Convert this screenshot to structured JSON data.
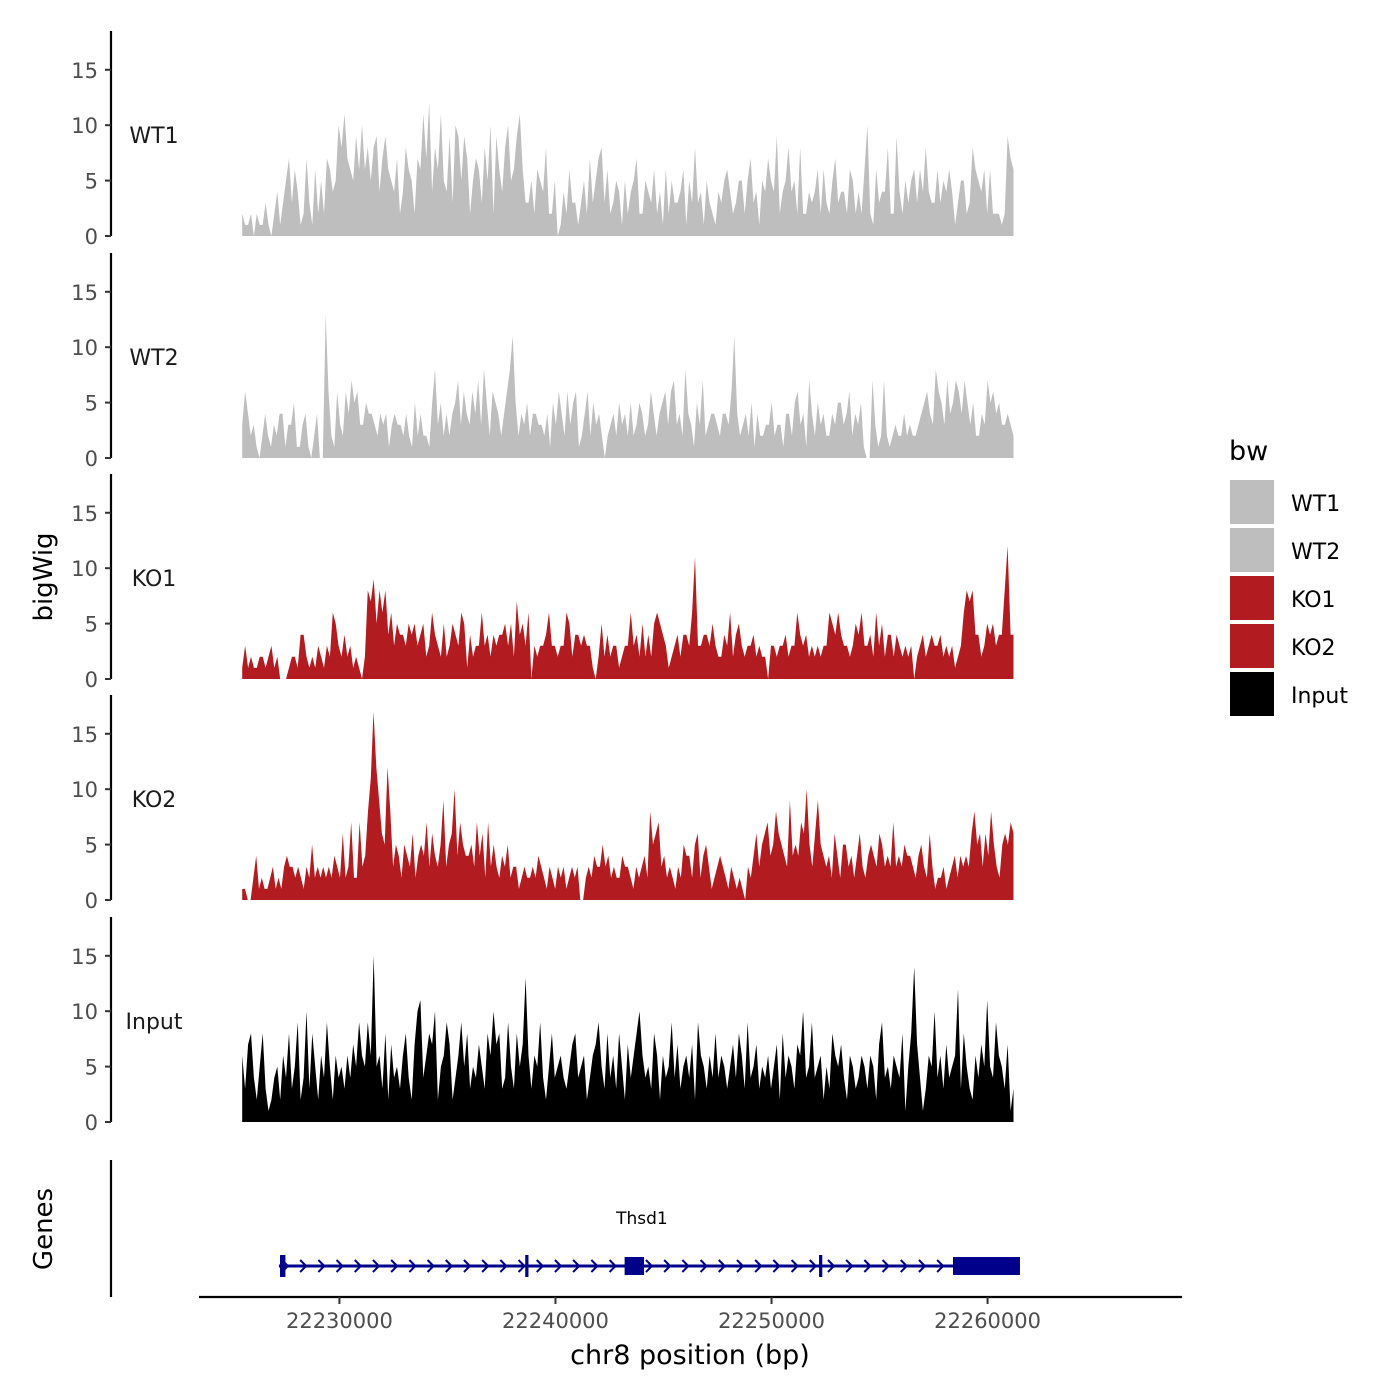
{
  "chart_data": {
    "type": "area",
    "ylabel": "bigWig",
    "xlabel": "chr8 position (bp)",
    "y_ticks": [
      "0",
      "5",
      "10",
      "15"
    ],
    "ylim": [
      0,
      18.5
    ],
    "xlim": [
      22223500,
      22269000
    ],
    "data_x_range": [
      22225500,
      22261200
    ],
    "x_ticks": [
      {
        "value": 22230000,
        "label": "22230000"
      },
      {
        "value": 22240000,
        "label": "22240000"
      },
      {
        "value": 22250000,
        "label": "22250000"
      },
      {
        "value": 22260000,
        "label": "22260000"
      }
    ],
    "tracks": [
      {
        "name": "WT1",
        "color": "#BEBEBE",
        "values": [
          2,
          1,
          1,
          2,
          0,
          2,
          1,
          1,
          3,
          1,
          0,
          2,
          4,
          1,
          3,
          5,
          7,
          3,
          6,
          4,
          1,
          2,
          7,
          3,
          1,
          6,
          2,
          5,
          2,
          7,
          6,
          4,
          5,
          10,
          8,
          11,
          7,
          6,
          5,
          9,
          6,
          10,
          6,
          8,
          5,
          8,
          9,
          4,
          7,
          9,
          6,
          5,
          4,
          7,
          2,
          4,
          8,
          6,
          5,
          2,
          7,
          6,
          11,
          7,
          12,
          4,
          8,
          6,
          11,
          5,
          4,
          9,
          3,
          10,
          9,
          5,
          9,
          7,
          2,
          5,
          7,
          6,
          3,
          8,
          5,
          10,
          2,
          9,
          6,
          4,
          8,
          10,
          5,
          6,
          9,
          11,
          6,
          3,
          3,
          5,
          2,
          6,
          5,
          4,
          8,
          2,
          2,
          5,
          0,
          1,
          4,
          2,
          6,
          3,
          3,
          1,
          3,
          5,
          2,
          7,
          3,
          5,
          7,
          8,
          3,
          6,
          2,
          3,
          5,
          4,
          1,
          5,
          2,
          4,
          5,
          7,
          2,
          2,
          5,
          4,
          3,
          6,
          2,
          4,
          1,
          6,
          2,
          5,
          3,
          3,
          4,
          6,
          1,
          5,
          3,
          8,
          3,
          4,
          1,
          5,
          3,
          2,
          1,
          4,
          3,
          5,
          6,
          4,
          2,
          3,
          5,
          5,
          2,
          5,
          7,
          3,
          4,
          1,
          5,
          4,
          7,
          5,
          4,
          9,
          2,
          4,
          5,
          8,
          4,
          5,
          2,
          8,
          2,
          2,
          4,
          3,
          4,
          6,
          2,
          6,
          3,
          2,
          5,
          7,
          3,
          4,
          4,
          2,
          6,
          5,
          2,
          4,
          2,
          6,
          10,
          2,
          1,
          6,
          3,
          4,
          4,
          8,
          2,
          2,
          9,
          4,
          2,
          5,
          3,
          5,
          6,
          3,
          6,
          4,
          8,
          4,
          3,
          3,
          6,
          3,
          5,
          4,
          6,
          4,
          1,
          3,
          5,
          5,
          2,
          3,
          8,
          6,
          5,
          4,
          6,
          2,
          6,
          2,
          2,
          2,
          1,
          2,
          9,
          7,
          6
        ]
      },
      {
        "name": "WT2",
        "color": "#BEBEBE",
        "values": [
          3,
          6,
          4,
          2,
          3,
          1,
          0,
          2,
          4,
          2,
          1,
          3,
          2,
          4,
          4,
          1,
          3,
          3,
          5,
          1,
          1,
          3,
          4,
          1,
          0,
          2,
          4,
          0,
          0,
          13,
          6,
          2,
          1,
          6,
          3,
          2,
          6,
          4,
          7,
          5,
          6,
          3,
          3,
          5,
          4,
          4,
          3,
          2,
          4,
          3,
          4,
          1,
          3,
          4,
          3,
          3,
          2,
          4,
          2,
          1,
          5,
          2,
          4,
          2,
          2,
          1,
          5,
          8,
          3,
          5,
          2,
          4,
          2,
          4,
          5,
          7,
          3,
          6,
          4,
          3,
          6,
          4,
          7,
          3,
          8,
          5,
          2,
          6,
          5,
          4,
          2,
          4,
          6,
          8,
          11,
          5,
          2,
          4,
          3,
          5,
          2,
          4,
          4,
          3,
          3,
          2,
          4,
          1,
          5,
          3,
          6,
          4,
          2,
          6,
          3,
          5,
          6,
          1,
          2,
          4,
          6,
          2,
          5,
          3,
          4,
          2,
          0,
          2,
          3,
          4,
          2,
          5,
          3,
          4,
          2,
          5,
          2,
          3,
          5,
          4,
          2,
          3,
          6,
          4,
          2,
          4,
          5,
          6,
          3,
          6,
          7,
          3,
          4,
          2,
          8,
          4,
          3,
          1,
          5,
          3,
          7,
          2,
          3,
          4,
          4,
          3,
          2,
          4,
          4,
          3,
          6,
          11,
          4,
          2,
          3,
          4,
          2,
          5,
          1,
          4,
          2,
          2,
          3,
          3,
          5,
          2,
          3,
          3,
          1,
          4,
          4,
          2,
          5,
          6,
          3,
          4,
          1,
          7,
          4,
          2,
          5,
          3,
          4,
          2,
          2,
          4,
          3,
          5,
          5,
          3,
          4,
          6,
          2,
          4,
          3,
          5,
          1,
          0,
          0,
          7,
          3,
          1,
          2,
          7,
          2,
          1,
          2,
          3,
          2,
          2,
          4,
          2,
          3,
          2,
          2,
          3,
          4,
          5,
          6,
          4,
          3,
          8,
          6,
          5,
          3,
          7,
          4,
          5,
          7,
          6,
          4,
          7,
          5,
          3,
          5,
          2,
          2,
          4,
          3,
          7,
          5,
          6,
          4,
          5,
          3,
          3,
          4,
          3,
          2
        ]
      },
      {
        "name": "KO1",
        "color": "#B21B1F",
        "values": [
          1,
          3,
          1,
          2,
          1,
          1,
          2,
          2,
          1,
          2,
          3,
          1,
          2,
          0,
          0,
          0,
          1,
          2,
          2,
          1,
          4,
          4,
          2,
          1,
          2,
          1,
          3,
          2,
          1,
          3,
          2,
          6,
          5,
          3,
          2,
          4,
          2,
          3,
          1,
          2,
          1,
          0,
          2,
          8,
          7,
          9,
          5,
          8,
          6,
          8,
          4,
          6,
          3,
          5,
          4,
          4,
          3,
          5,
          4,
          5,
          3,
          4,
          5,
          2,
          3,
          6,
          4,
          3,
          2,
          5,
          2,
          3,
          5,
          4,
          3,
          6,
          5,
          1,
          4,
          2,
          3,
          3,
          6,
          3,
          4,
          2,
          4,
          3,
          4,
          4,
          5,
          3,
          5,
          2,
          7,
          4,
          5,
          3,
          6,
          0,
          3,
          2,
          3,
          3,
          4,
          6,
          3,
          3,
          2,
          3,
          3,
          6,
          5,
          2,
          4,
          4,
          3,
          4,
          3,
          3,
          1,
          0,
          2,
          5,
          2,
          4,
          2,
          3,
          3,
          1,
          2,
          3,
          3,
          6,
          3,
          4,
          2,
          5,
          2,
          4,
          2,
          5,
          6,
          5,
          4,
          3,
          1,
          2,
          3,
          4,
          2,
          4,
          4,
          3,
          6,
          11,
          3,
          3,
          4,
          4,
          3,
          5,
          3,
          2,
          2,
          4,
          3,
          6,
          2,
          4,
          5,
          3,
          2,
          3,
          3,
          4,
          2,
          3,
          2,
          2,
          0,
          3,
          3,
          2,
          3,
          3,
          4,
          2,
          3,
          3,
          6,
          4,
          3,
          4,
          2,
          3,
          2,
          3,
          2,
          3,
          3,
          6,
          5,
          4,
          6,
          4,
          3,
          3,
          2,
          3,
          5,
          4,
          6,
          3,
          3,
          4,
          2,
          6,
          3,
          5,
          2,
          4,
          4,
          2,
          4,
          3,
          2,
          3,
          2,
          3,
          0,
          2,
          3,
          4,
          2,
          3,
          4,
          3,
          3,
          4,
          2,
          3,
          2,
          3,
          1,
          2,
          3,
          6,
          8,
          7,
          8,
          4,
          4,
          2,
          3,
          5,
          4,
          5,
          3,
          4,
          4,
          8,
          12,
          4,
          4
        ]
      },
      {
        "name": "KO2",
        "color": "#B21B1F",
        "values": [
          1,
          1,
          0,
          0,
          2,
          4,
          1,
          2,
          1,
          1,
          2,
          3,
          1,
          2,
          1,
          3,
          4,
          3,
          3,
          2,
          3,
          2,
          1,
          3,
          2,
          5,
          2,
          3,
          2,
          3,
          2,
          3,
          2,
          4,
          3,
          2,
          6,
          2,
          3,
          7,
          2,
          2,
          7,
          3,
          4,
          8,
          11,
          17,
          12,
          9,
          6,
          5,
          12,
          8,
          3,
          5,
          4,
          2,
          5,
          4,
          3,
          6,
          2,
          4,
          5,
          4,
          7,
          3,
          6,
          4,
          3,
          5,
          9,
          3,
          5,
          6,
          10,
          4,
          7,
          5,
          4,
          4,
          5,
          3,
          7,
          4,
          6,
          2,
          7,
          3,
          5,
          3,
          2,
          4,
          3,
          5,
          2,
          3,
          3,
          1,
          2,
          3,
          2,
          2,
          3,
          2,
          4,
          3,
          2,
          1,
          3,
          2,
          1,
          3,
          2,
          3,
          1,
          2,
          3,
          2,
          3,
          0,
          0,
          2,
          3,
          2,
          4,
          3,
          3,
          5,
          3,
          4,
          2,
          3,
          2,
          2,
          4,
          3,
          3,
          2,
          1,
          3,
          2,
          3,
          4,
          2,
          8,
          5,
          6,
          7,
          3,
          4,
          2,
          3,
          2,
          1,
          3,
          2,
          5,
          4,
          4,
          2,
          5,
          6,
          2,
          4,
          5,
          3,
          1,
          2,
          3,
          4,
          3,
          2,
          1,
          3,
          2,
          1,
          2,
          1,
          0,
          3,
          2,
          4,
          6,
          3,
          5,
          6,
          7,
          4,
          5,
          8,
          6,
          5,
          4,
          3,
          9,
          4,
          5,
          4,
          7,
          6,
          10,
          5,
          3,
          6,
          9,
          5,
          4,
          3,
          4,
          2,
          6,
          4,
          2,
          5,
          5,
          3,
          4,
          2,
          4,
          6,
          3,
          2,
          4,
          5,
          4,
          3,
          6,
          5,
          3,
          4,
          3,
          7,
          3,
          4,
          3,
          5,
          4,
          4,
          3,
          2,
          4,
          5,
          3,
          2,
          6,
          3,
          1,
          2,
          2,
          3,
          1,
          2,
          3,
          4,
          2,
          4,
          3,
          4,
          3,
          6,
          8,
          5,
          6,
          3,
          6,
          4,
          8,
          5,
          3,
          2,
          5,
          6,
          5,
          7,
          6
        ]
      },
      {
        "name": "Input",
        "color": "#000000",
        "values": [
          6,
          3,
          7,
          8,
          4,
          2,
          5,
          8,
          3,
          1,
          2,
          4,
          5,
          2,
          6,
          4,
          8,
          3,
          5,
          9,
          2,
          4,
          10,
          3,
          8,
          5,
          2,
          6,
          4,
          9,
          5,
          2,
          6,
          4,
          5,
          3,
          6,
          4,
          7,
          5,
          9,
          6,
          5,
          9,
          6,
          15,
          5,
          6,
          3,
          8,
          2,
          7,
          4,
          5,
          3,
          6,
          8,
          4,
          2,
          7,
          10,
          11,
          4,
          6,
          8,
          7,
          10,
          2,
          5,
          6,
          9,
          7,
          2,
          4,
          6,
          9,
          5,
          8,
          3,
          5,
          4,
          7,
          5,
          3,
          8,
          6,
          10,
          7,
          8,
          3,
          4,
          9,
          5,
          3,
          8,
          5,
          7,
          13,
          6,
          3,
          6,
          5,
          9,
          4,
          2,
          5,
          8,
          4,
          5,
          6,
          4,
          3,
          5,
          7,
          8,
          4,
          5,
          6,
          2,
          4,
          6,
          7,
          9,
          5,
          3,
          8,
          4,
          6,
          3,
          8,
          5,
          2,
          7,
          4,
          6,
          8,
          10,
          6,
          4,
          5,
          3,
          8,
          6,
          2,
          6,
          4,
          5,
          9,
          4,
          7,
          3,
          5,
          6,
          4,
          7,
          2,
          9,
          6,
          5,
          3,
          6,
          4,
          8,
          4,
          6,
          5,
          3,
          5,
          7,
          4,
          8,
          6,
          3,
          9,
          4,
          5,
          7,
          3,
          5,
          4,
          6,
          3,
          5,
          7,
          2,
          8,
          4,
          6,
          5,
          3,
          7,
          6,
          10,
          4,
          5,
          9,
          4,
          5,
          6,
          2,
          5,
          3,
          8,
          6,
          5,
          7,
          4,
          2,
          6,
          5,
          3,
          4,
          6,
          5,
          3,
          6,
          5,
          2,
          7,
          9,
          4,
          5,
          3,
          6,
          5,
          4,
          8,
          1,
          5,
          8,
          14,
          7,
          4,
          1,
          3,
          6,
          5,
          10,
          4,
          6,
          3,
          7,
          4,
          5,
          6,
          12,
          3,
          8,
          5,
          3,
          2,
          6,
          4,
          7,
          5,
          11,
          5,
          4,
          9,
          6,
          5,
          3,
          7,
          1,
          3
        ]
      }
    ],
    "legend": {
      "title": "bw",
      "position": "right",
      "entries": [
        {
          "label": "WT1",
          "color": "#BEBEBE"
        },
        {
          "label": "WT2",
          "color": "#BEBEBE"
        },
        {
          "label": "KO1",
          "color": "#B21B1F"
        },
        {
          "label": "KO2",
          "color": "#B21B1F"
        },
        {
          "label": "Input",
          "color": "#000000"
        }
      ]
    },
    "genes_panel": {
      "ylabel": "Genes",
      "gene_name": "Thsd1",
      "color": "#00008B",
      "start": 22227200,
      "end": 22261500,
      "exons": [
        {
          "start": 22227250,
          "end": 22227500
        },
        {
          "start": 22238600,
          "end": 22238750
        },
        {
          "start": 22243200,
          "end": 22244100
        },
        {
          "start": 22252200,
          "end": 22252350
        },
        {
          "start": 22258400,
          "end": 22261500
        }
      ]
    }
  }
}
